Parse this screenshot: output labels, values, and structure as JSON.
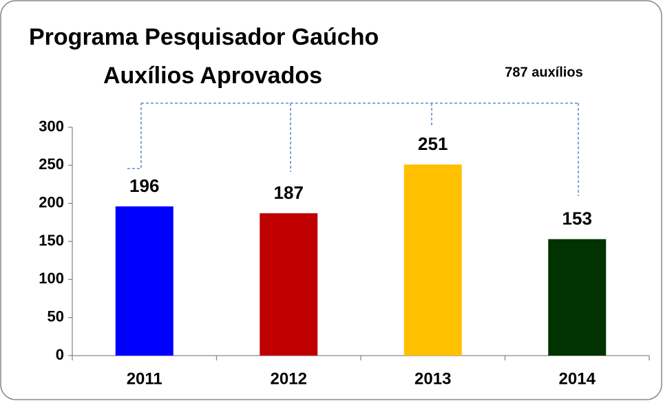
{
  "chart_data": {
    "type": "bar",
    "title": [
      "Programa Pesquisador Gaúcho",
      "Auxílios Aprovados"
    ],
    "annotation": "787 auxílios",
    "categories": [
      "2011",
      "2012",
      "2013",
      "2014"
    ],
    "values": [
      196,
      187,
      251,
      153
    ],
    "colors": [
      "#0000ff",
      "#c00000",
      "#ffc000",
      "#003300"
    ],
    "ylim": [
      0,
      300
    ],
    "yticks": [
      0,
      50,
      100,
      150,
      200,
      250,
      300
    ],
    "grid": false
  }
}
